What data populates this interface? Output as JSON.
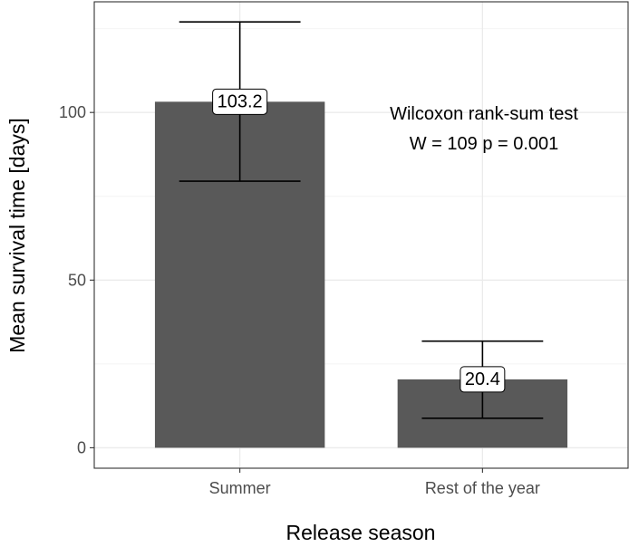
{
  "chart_data": {
    "type": "bar",
    "categories": [
      "Summer",
      "Rest of the year"
    ],
    "values": [
      103.2,
      20.4
    ],
    "error_bars": [
      {
        "lower": 79.5,
        "upper": 127.0
      },
      {
        "lower": 8.8,
        "upper": 31.8
      }
    ],
    "data_labels": [
      "103.2",
      "20.4"
    ],
    "xlabel": "Release season",
    "ylabel": "Mean survival time [days]",
    "yticks": [
      0,
      50,
      100
    ],
    "ylim": [
      -6.1,
      133
    ],
    "grid": true,
    "annotations": [
      "Wilcoxon rank-sum test",
      "W = 109   p = 0.001"
    ],
    "colors": {
      "bar": "#595959",
      "panel_border": "#333333",
      "grid_major": "#ebebeb",
      "grid_minor": "#f4f4f4",
      "error_bar": "#000000"
    }
  }
}
